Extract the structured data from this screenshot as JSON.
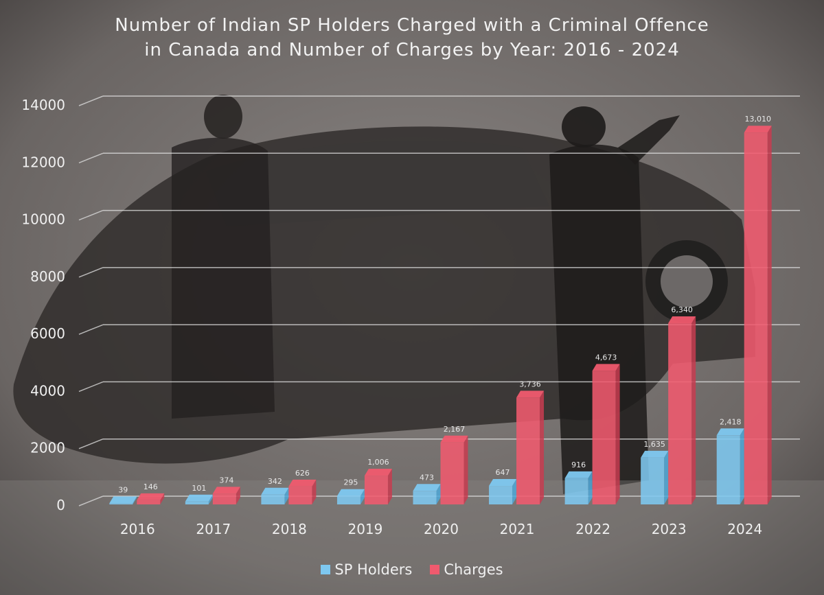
{
  "chart_data": {
    "type": "bar",
    "title": "Number of Indian SP Holders Charged with a Criminal Offence",
    "subtitle": "in Canada and Number of Charges by Year: 2016 - 2024",
    "categories": [
      "2016",
      "2017",
      "2018",
      "2019",
      "2020",
      "2021",
      "2022",
      "2023",
      "2024"
    ],
    "series": [
      {
        "name": "SP Holders",
        "color": "#7ec8f0",
        "values": [
          39,
          101,
          342,
          295,
          473,
          647,
          916,
          1635,
          2418
        ],
        "labels": [
          "39",
          "101",
          "342",
          "295",
          "473",
          "647",
          "916",
          "1,635",
          "2,418"
        ]
      },
      {
        "name": "Charges",
        "color": "#f05a6e",
        "values": [
          146,
          374,
          626,
          1006,
          2167,
          3736,
          4673,
          6340,
          13010
        ],
        "labels": [
          "146",
          "374",
          "626",
          "1,006",
          "2,167",
          "3,736",
          "4,673",
          "6,340",
          "13,010"
        ]
      }
    ],
    "yticks": [
      "0",
      "2000",
      "4000",
      "6000",
      "8000",
      "10000",
      "12000",
      "14000"
    ],
    "ylim": [
      0,
      14000
    ],
    "grid": true,
    "legend_position": "bottom"
  }
}
